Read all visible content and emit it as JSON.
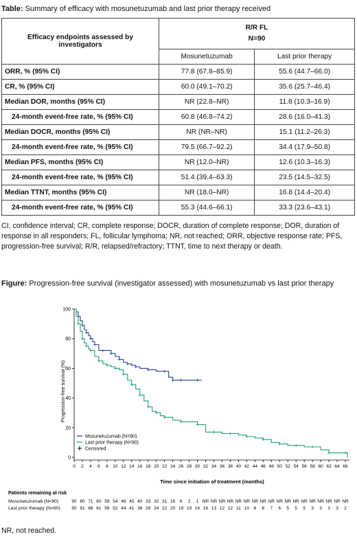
{
  "table": {
    "caption_label": "Table:",
    "caption_text": "Summary of efficacy with mosunetuzumab and last prior therapy received",
    "header_left": "Efficacy endpoints assessed by investigators",
    "group_line1": "R/R FL",
    "group_line2": "N=90",
    "col1": "Mosunetuzumab",
    "col2": "Last prior therapy",
    "rows": [
      {
        "label": "ORR, % (95% CI)",
        "m": "77.8 (67.8–85.9)",
        "p": "55.6 (44.7–66.0)"
      },
      {
        "label": "CR, % (95% CI)",
        "m": "60.0 (49.1–70.2)",
        "p": "35.6 (25.7–46.4)"
      },
      {
        "label": "Median DOR, months (95% CI)",
        "m": "NR (22.8–NR)",
        "p": "11.8 (10.3–16.9)"
      },
      {
        "label": "24-month event-free rate, % (95% CI)",
        "m": "60.8 (46.8–74.2)",
        "p": "28.6 (16.0–41.3)"
      },
      {
        "label": "Median DOCR, months (95% CI)",
        "m": "NR (NR–NR)",
        "p": "15.1 (11.2–26.3)"
      },
      {
        "label": "24-month event-free rate, % (95% CI)",
        "m": "79.5 (66.7–92.2)",
        "p": "34.4 (17.9–50.8)"
      },
      {
        "label": "Median PFS, months (95% CI)",
        "m": "NR (12.0–NR)",
        "p": "12.6 (10.3–16.3)"
      },
      {
        "label": "24-month event-free rate, % (95% CI)",
        "m": "51.4 (39.4–63.3)",
        "p": "23.5 (14.5–32.5)"
      },
      {
        "label": "Median TTNT, months (95% CI)",
        "m": "NR (18.0–NR)",
        "p": "16.8 (14.4–20.4)"
      },
      {
        "label": "24-month event-free rate, % (95% CI)",
        "m": "55.3 (44.6–66.1)",
        "p": "33.3 (23.6–43.1)"
      }
    ]
  },
  "abbreviations": "CI, confidence interval; CR, complete response; DOCR, duration of complete response; DOR, duration of response in all responders; FL, follicular lymphoma; NR, not reached; ORR, objective response rate; PFS, progression-free survival; R/R, relapsed/refractory; TTNT, time to next therapy or death.",
  "figure": {
    "caption_label": "Figure:",
    "caption_text": "Progression-free survival (investigator assessed) with mosunetuzumab vs last prior therapy"
  },
  "chart_data": {
    "type": "line",
    "xlabel": "Time since initiation of treatment (months)",
    "ylabel": "Progression-free survival (%)",
    "xlim": [
      0,
      67
    ],
    "ylim": [
      0,
      100
    ],
    "xticks": [
      0,
      2,
      4,
      6,
      8,
      10,
      12,
      14,
      16,
      18,
      20,
      22,
      24,
      26,
      28,
      30,
      32,
      34,
      36,
      38,
      40,
      42,
      44,
      46,
      48,
      50,
      52,
      54,
      56,
      58,
      60,
      62,
      64,
      66
    ],
    "yticks": [
      0,
      20,
      40,
      60,
      80,
      100
    ],
    "colors": {
      "Mosunetuzumab": "#1f3e9e",
      "Last prior therapy": "#1aa07a"
    },
    "series": [
      {
        "name": "Mosunetuzumab (N=90)",
        "color": "#1f3e9e",
        "x": [
          0,
          0.5,
          1,
          1.5,
          2,
          2.5,
          3,
          3.5,
          4,
          4.5,
          5,
          6,
          7,
          8,
          9,
          10,
          11,
          12,
          13,
          14,
          15,
          16,
          18,
          20,
          22,
          23,
          24,
          25,
          26,
          28,
          30,
          31
        ],
        "y": [
          100,
          98,
          95,
          92,
          89,
          86,
          84,
          82,
          80,
          78,
          76,
          72,
          72,
          72,
          70,
          68,
          66,
          64,
          63,
          62,
          61,
          60,
          59,
          58,
          58,
          54,
          52,
          52,
          52,
          52,
          52,
          52
        ]
      },
      {
        "name": "Last prior therapy (N=90)",
        "color": "#1aa07a",
        "x": [
          0,
          0.5,
          1,
          1.5,
          2,
          2.5,
          3,
          3.5,
          4,
          5,
          6,
          7,
          8,
          9,
          10,
          11,
          12,
          13,
          14,
          15,
          16,
          17,
          18,
          19,
          20,
          21,
          22,
          24,
          26,
          28,
          30,
          32,
          34,
          36,
          38,
          40,
          42,
          44,
          46,
          48,
          50,
          52,
          54,
          56,
          58,
          60,
          62,
          64,
          66,
          66.5
        ],
        "y": [
          100,
          95,
          90,
          85,
          80,
          77,
          75,
          73,
          72,
          68,
          65,
          63,
          62,
          61,
          60,
          59,
          56,
          52,
          49,
          46,
          42,
          38,
          34,
          31,
          30,
          28,
          27,
          25,
          24,
          24,
          22,
          17,
          17,
          16,
          16,
          15,
          14,
          13,
          12,
          10,
          9,
          8,
          8,
          7,
          7,
          5,
          3,
          3,
          3,
          0
        ]
      }
    ],
    "legend": [
      "Mosunetuzumab (N=90)",
      "Last prior therapy (N=90)",
      "Censored"
    ],
    "risk_table": {
      "title": "Patients remaining at risk",
      "rows": [
        {
          "label": "Mosunetuzumab (N=90)",
          "values": [
            "90",
            "80",
            "71",
            "60",
            "59",
            "54",
            "46",
            "45",
            "40",
            "33",
            "32",
            "31",
            "16",
            "6",
            "2",
            "1",
            "NR",
            "NR",
            "NR",
            "NR",
            "NR",
            "NR",
            "NR",
            "NR",
            "NR",
            "NR",
            "NR",
            "NR",
            "NR",
            "NR",
            "NR",
            "NR",
            "NR",
            "NR"
          ]
        },
        {
          "label": "Last prior therapy (N=90)",
          "values": [
            "90",
            "81",
            "66",
            "61",
            "56",
            "52",
            "44",
            "41",
            "36",
            "28",
            "24",
            "22",
            "20",
            "19",
            "19",
            "16",
            "16",
            "13",
            "12",
            "12",
            "11",
            "10",
            "8",
            "8",
            "7",
            "6",
            "5",
            "5",
            "5",
            "3",
            "3",
            "3",
            "3",
            "2"
          ]
        }
      ]
    }
  },
  "footnote": "NR, not reached."
}
